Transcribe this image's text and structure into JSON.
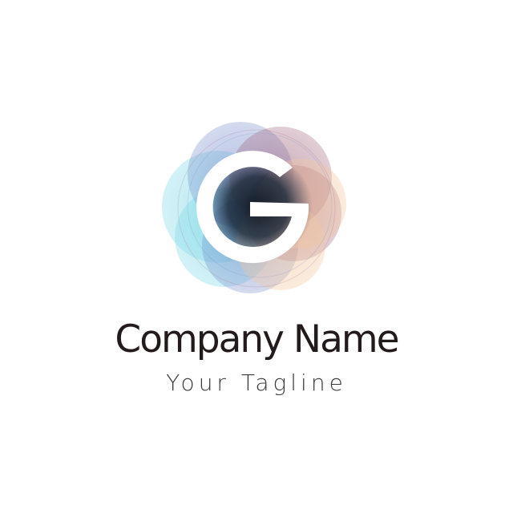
{
  "logo": {
    "letter": "G",
    "company_name": "Company Name",
    "tagline": "Your Tagline",
    "colors": {
      "cyan": "#7fd8e6",
      "blue": "#6f86c9",
      "magenta": "#9b5a73",
      "peach": "#f2c7a0",
      "core_dark": "#0d1722",
      "letter": "#ffffff",
      "text": "#221a1b"
    }
  }
}
